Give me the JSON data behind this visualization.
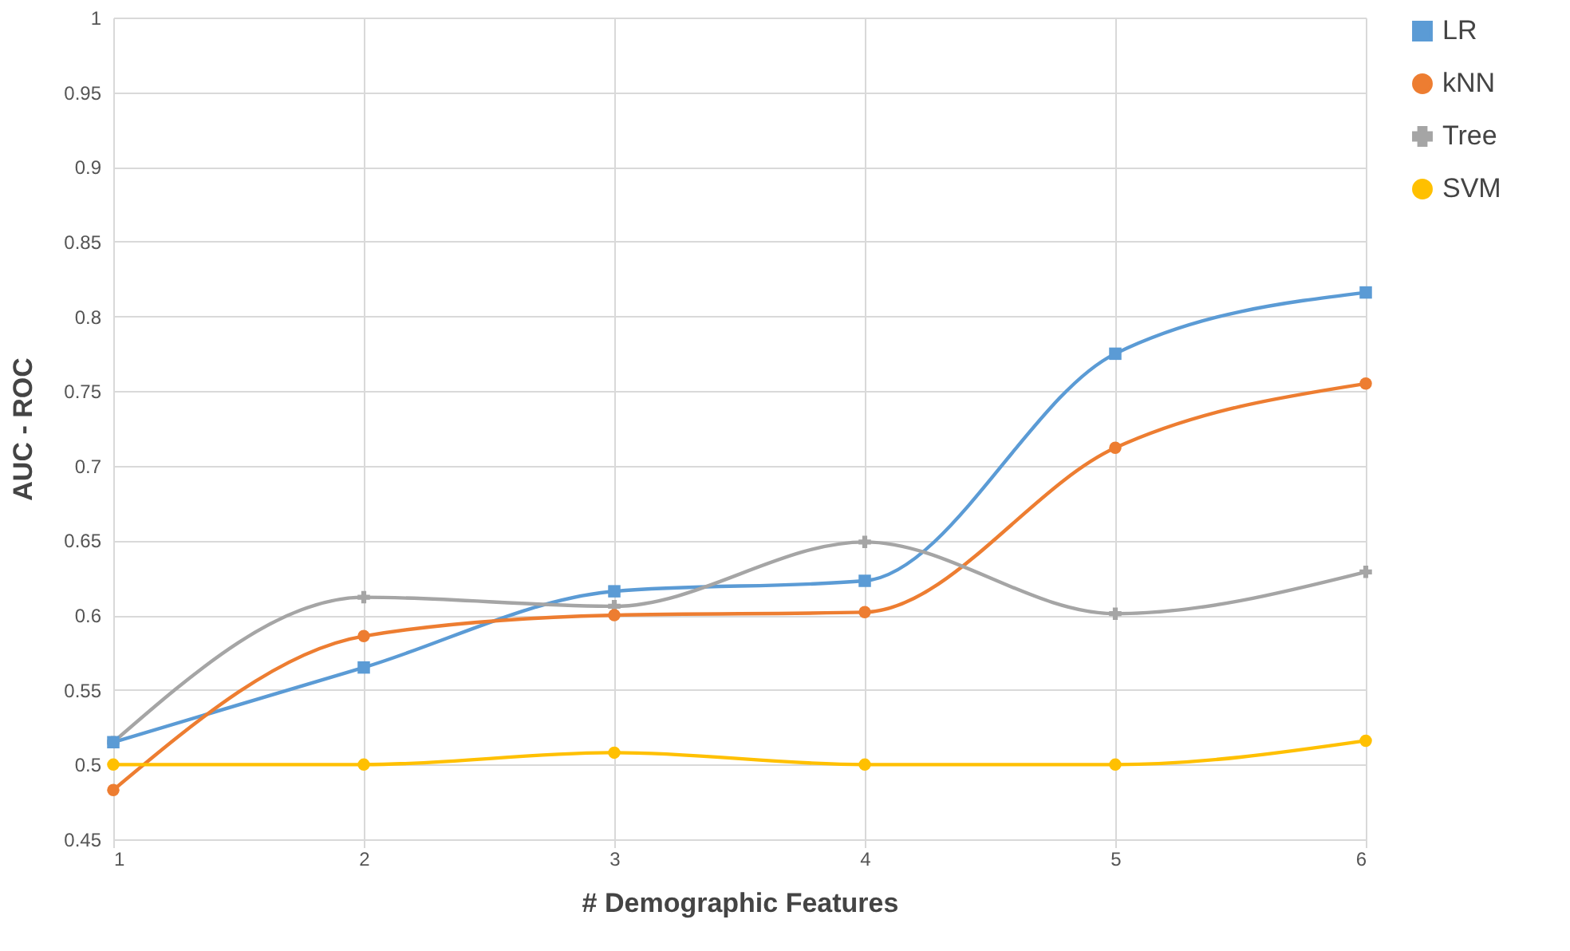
{
  "chart_data": {
    "type": "line",
    "xlabel": "# Demographic Features",
    "ylabel": "AUC - ROC",
    "x": [
      1,
      2,
      3,
      4,
      5,
      6
    ],
    "series": [
      {
        "name": "LR",
        "color": "#5b9bd5",
        "marker": "square",
        "values": [
          0.515,
          0.565,
          0.616,
          0.623,
          0.775,
          0.816
        ]
      },
      {
        "name": "kNN",
        "color": "#ed7d31",
        "marker": "circle",
        "values": [
          0.483,
          0.586,
          0.6,
          0.602,
          0.712,
          0.755
        ]
      },
      {
        "name": "Tree",
        "color": "#a5a5a5",
        "marker": "cross",
        "values": [
          0.515,
          0.612,
          0.606,
          0.649,
          0.601,
          0.629
        ]
      },
      {
        "name": "SVM",
        "color": "#ffc000",
        "marker": "circle",
        "values": [
          0.5,
          0.5,
          0.508,
          0.5,
          0.5,
          0.516
        ]
      }
    ],
    "xlim": [
      1,
      6
    ],
    "xticks": [
      1,
      2,
      3,
      4,
      5,
      6
    ],
    "ylim": [
      0.45,
      1
    ],
    "yticks": [
      0.45,
      0.5,
      0.55,
      0.6,
      0.65,
      0.7,
      0.75,
      0.8,
      0.85,
      0.9,
      0.95,
      1
    ],
    "grid": true,
    "legend": "right",
    "line_style": "solid"
  }
}
